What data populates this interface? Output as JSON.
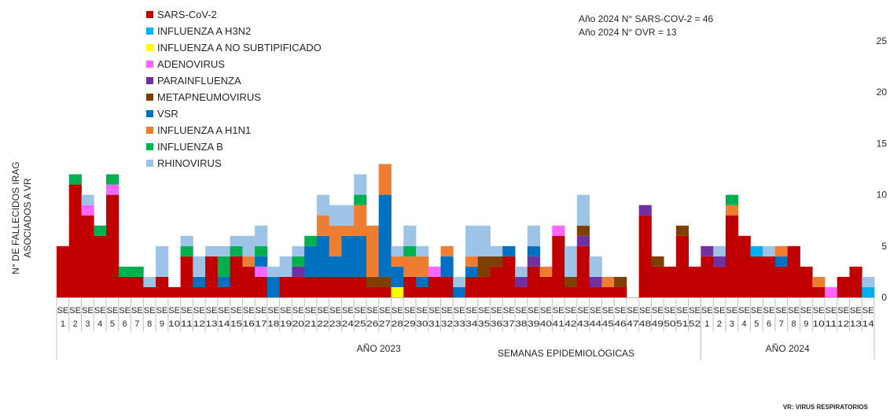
{
  "chart_data": {
    "type": "bar",
    "stacked": true,
    "ylabel": "N° DE FALLECIDOS IRAG ASOCIADOS A VR",
    "ylim": [
      0,
      25
    ],
    "yticks": [
      0,
      5,
      10,
      15,
      20,
      25
    ],
    "grid": false,
    "legend_position": "top-left",
    "groups": [
      {
        "label": "AÑO 2023",
        "weeks": 52
      },
      {
        "label": "AÑO 2024",
        "weeks": 14
      }
    ],
    "xlabel": "SEMANAS EPIDEMIOLÓGICAS",
    "tick_prefix": "SE",
    "categories": [
      "1",
      "2",
      "3",
      "4",
      "5",
      "6",
      "7",
      "8",
      "9",
      "10",
      "11",
      "12",
      "13",
      "14",
      "15",
      "16",
      "17",
      "18",
      "19",
      "20",
      "21",
      "22",
      "23",
      "24",
      "25",
      "26",
      "27",
      "28",
      "29",
      "30",
      "31",
      "32",
      "33",
      "34",
      "35",
      "36",
      "37",
      "38",
      "39",
      "40",
      "41",
      "42",
      "43",
      "44",
      "45",
      "46",
      "47",
      "48",
      "49",
      "50",
      "51",
      "52",
      "1",
      "2",
      "3",
      "4",
      "5",
      "6",
      "7",
      "8",
      "9",
      "10",
      "11",
      "12",
      "13",
      "14"
    ],
    "annotations": [
      "Año 2024 N° SARS-COV-2 = 46",
      "Año 2024 N° OVR = 13"
    ],
    "footnote": "VR: VIRUS RESPIRATORIOS",
    "series": [
      {
        "name": "SARS-CoV-2",
        "color": "#C00000",
        "values": [
          5,
          11,
          8,
          6,
          10,
          2,
          2,
          1,
          2,
          1,
          4,
          1,
          4,
          1,
          4,
          3,
          2,
          0,
          2,
          2,
          2,
          2,
          2,
          2,
          2,
          1,
          1,
          0,
          2,
          1,
          2,
          2,
          0,
          2,
          2,
          3,
          4,
          1,
          3,
          2,
          6,
          1,
          5,
          1,
          1,
          1,
          0,
          8,
          3,
          3,
          6,
          3,
          4,
          3,
          8,
          6,
          4,
          4,
          3,
          5,
          3,
          1,
          0,
          2,
          3,
          0
        ]
      },
      {
        "name": "INFLUENZA A H3N2",
        "color": "#00B0F0",
        "values": [
          0,
          0,
          0,
          0,
          0,
          0,
          0,
          0,
          0,
          0,
          0,
          0,
          0,
          0,
          0,
          0,
          0,
          0,
          0,
          0,
          0,
          0,
          0,
          0,
          0,
          0,
          0,
          0,
          0,
          0,
          0,
          0,
          0,
          0,
          0,
          0,
          0,
          0,
          0,
          0,
          0,
          0,
          0,
          0,
          0,
          0,
          0,
          0,
          0,
          0,
          0,
          0,
          0,
          0,
          0,
          0,
          1,
          0,
          0,
          0,
          0,
          0,
          0,
          0,
          0,
          1
        ]
      },
      {
        "name": "INFLUENZA A NO SUBTIPIFICADO",
        "color": "#FFFF00",
        "values": [
          0,
          0,
          0,
          0,
          0,
          0,
          0,
          0,
          0,
          0,
          0,
          0,
          0,
          0,
          0,
          0,
          0,
          0,
          0,
          0,
          0,
          0,
          0,
          0,
          0,
          0,
          0,
          1,
          0,
          0,
          0,
          0,
          0,
          0,
          0,
          0,
          0,
          0,
          0,
          0,
          0,
          0,
          0,
          0,
          0,
          0,
          0,
          0,
          0,
          0,
          0,
          0,
          0,
          0,
          0,
          0,
          0,
          0,
          0,
          0,
          0,
          0,
          0,
          0,
          0,
          0
        ]
      },
      {
        "name": "ADENOVIRUS",
        "color": "#FF66FF",
        "values": [
          0,
          0,
          1,
          0,
          1,
          0,
          0,
          0,
          0,
          0,
          0,
          0,
          0,
          0,
          0,
          0,
          1,
          0,
          0,
          0,
          0,
          0,
          0,
          0,
          0,
          0,
          0,
          0,
          0,
          0,
          1,
          0,
          0,
          0,
          0,
          0,
          0,
          0,
          0,
          0,
          1,
          0,
          0,
          0,
          0,
          0,
          0,
          0,
          0,
          0,
          0,
          0,
          0,
          0,
          0,
          0,
          0,
          0,
          0,
          0,
          0,
          0,
          1,
          0,
          0,
          0
        ]
      },
      {
        "name": "PARAINFLUENZA",
        "color": "#7030A0",
        "values": [
          0,
          0,
          0,
          0,
          0,
          0,
          0,
          0,
          0,
          0,
          0,
          0,
          0,
          0,
          0,
          0,
          0,
          0,
          0,
          1,
          0,
          0,
          0,
          0,
          0,
          0,
          0,
          0,
          0,
          0,
          0,
          0,
          0,
          0,
          0,
          0,
          0,
          1,
          1,
          0,
          0,
          0,
          1,
          1,
          0,
          0,
          0,
          1,
          0,
          0,
          0,
          0,
          1,
          1,
          0,
          0,
          0,
          0,
          0,
          0,
          0,
          0,
          0,
          0,
          0,
          0
        ]
      },
      {
        "name": "METAPNEUMOVIRUS",
        "color": "#7F3F00",
        "values": [
          0,
          0,
          0,
          0,
          0,
          0,
          0,
          0,
          0,
          0,
          0,
          0,
          0,
          0,
          0,
          0,
          0,
          0,
          0,
          0,
          0,
          0,
          0,
          0,
          0,
          1,
          1,
          0,
          0,
          0,
          0,
          0,
          0,
          0,
          2,
          1,
          0,
          0,
          0,
          0,
          0,
          1,
          1,
          0,
          0,
          1,
          0,
          0,
          1,
          0,
          1,
          0,
          0,
          0,
          0,
          0,
          0,
          0,
          0,
          0,
          0,
          0,
          0,
          0,
          0,
          0
        ]
      },
      {
        "name": "VSR",
        "color": "#0070C0",
        "values": [
          0,
          0,
          0,
          0,
          0,
          0,
          0,
          0,
          0,
          0,
          0,
          1,
          0,
          1,
          0,
          0,
          1,
          2,
          0,
          0,
          3,
          4,
          2,
          4,
          4,
          0,
          8,
          2,
          0,
          1,
          0,
          2,
          1,
          1,
          0,
          0,
          1,
          0,
          1,
          0,
          0,
          0,
          0,
          0,
          0,
          0,
          0,
          0,
          0,
          0,
          0,
          0,
          0,
          0,
          0,
          0,
          0,
          0,
          1,
          0,
          0,
          0,
          0,
          0,
          0,
          0
        ]
      },
      {
        "name": "INFLUENZA A H1N1",
        "color": "#ED7D31",
        "values": [
          0,
          0,
          0,
          0,
          0,
          0,
          0,
          0,
          0,
          0,
          0,
          0,
          0,
          0,
          0,
          1,
          0,
          0,
          0,
          0,
          0,
          2,
          3,
          1,
          3,
          5,
          3,
          1,
          2,
          2,
          0,
          1,
          0,
          1,
          0,
          0,
          0,
          0,
          0,
          1,
          0,
          0,
          0,
          0,
          1,
          0,
          0,
          0,
          0,
          0,
          0,
          0,
          0,
          0,
          1,
          0,
          0,
          0,
          1,
          0,
          0,
          1,
          0,
          0,
          0,
          0
        ]
      },
      {
        "name": "INFLUENZA B",
        "color": "#00B050",
        "values": [
          0,
          1,
          0,
          1,
          1,
          1,
          1,
          0,
          0,
          0,
          1,
          0,
          0,
          2,
          1,
          0,
          1,
          0,
          0,
          1,
          1,
          0,
          0,
          0,
          1,
          0,
          0,
          0,
          1,
          0,
          0,
          0,
          0,
          0,
          0,
          0,
          0,
          0,
          0,
          0,
          0,
          0,
          0,
          0,
          0,
          0,
          0,
          0,
          0,
          0,
          0,
          0,
          0,
          0,
          1,
          0,
          0,
          0,
          0,
          0,
          0,
          0,
          0,
          0,
          0,
          0
        ]
      },
      {
        "name": "RHINOVIRUS",
        "color": "#9DC3E6",
        "values": [
          0,
          0,
          1,
          0,
          0,
          0,
          0,
          1,
          3,
          0,
          1,
          2,
          1,
          1,
          1,
          2,
          2,
          1,
          2,
          1,
          0,
          2,
          2,
          2,
          2,
          0,
          0,
          1,
          2,
          1,
          0,
          0,
          1,
          3,
          3,
          1,
          0,
          1,
          2,
          0,
          0,
          3,
          3,
          2,
          0,
          0,
          0,
          0,
          0,
          0,
          0,
          0,
          0,
          1,
          0,
          0,
          0,
          1,
          0,
          0,
          0,
          0,
          0,
          0,
          0,
          1
        ]
      }
    ]
  }
}
